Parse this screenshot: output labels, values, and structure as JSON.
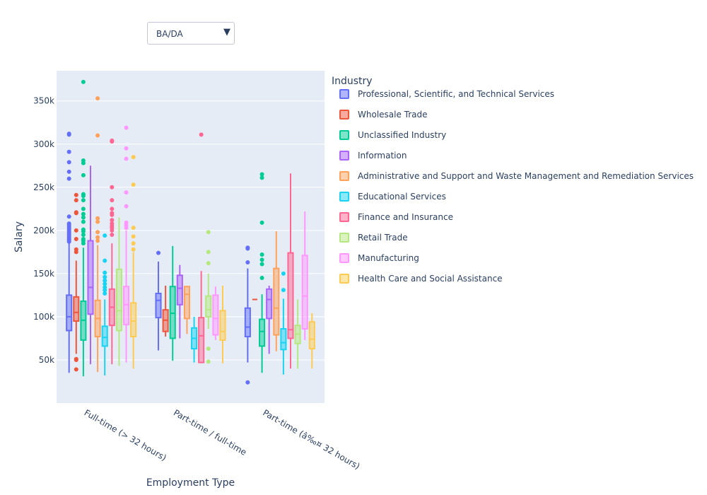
{
  "dropdown": {
    "selected": "BA/DA"
  },
  "chart_data": {
    "type": "box",
    "title": "",
    "xlabel": "Employment Type",
    "ylabel": "Salary",
    "ylim": [
      0,
      385000
    ],
    "yticks": [
      50000,
      100000,
      150000,
      200000,
      250000,
      300000,
      350000
    ],
    "ytick_labels": [
      "50k",
      "100k",
      "150k",
      "200k",
      "250k",
      "300k",
      "350k"
    ],
    "grid": true,
    "legend_title": "Industry",
    "legend_position": "right",
    "categories": [
      "Full-time (> 32 hours)",
      "Part-time / full-time",
      "Part-time (â‰¤ 32 hours)"
    ],
    "series": [
      {
        "name": "Professional, Scientific, and Technical Services",
        "color": "#636efa",
        "boxes": [
          {
            "min": 35000,
            "q1": 84000,
            "median": 100000,
            "q3": 125000,
            "max": 186000,
            "outliers": [
              187000,
              189000,
              190000,
              192000,
              194000,
              196000,
              198000,
              200000,
              202000,
              204000,
              206000,
              208000,
              216000,
              260000,
              268000,
              279000,
              291000,
              311000,
              312000
            ]
          },
          {
            "min": 61000,
            "q1": 99000,
            "median": 119000,
            "q3": 127000,
            "max": 164000,
            "outliers": [
              174000
            ]
          },
          {
            "min": 47000,
            "q1": 77000,
            "median": 88000,
            "q3": 110000,
            "max": 156000,
            "outliers": [
              24000,
              163000,
              179000,
              180000
            ]
          }
        ]
      },
      {
        "name": "Wholesale Trade",
        "color": "#ef553b",
        "boxes": [
          {
            "min": 57000,
            "q1": 95000,
            "median": 105000,
            "q3": 123000,
            "max": 165000,
            "outliers": [
              39000,
              50000,
              51000,
              175000,
              178000,
              190000,
              200000,
              220000,
              221000,
              235000,
              241000
            ]
          },
          {
            "min": 77000,
            "q1": 83000,
            "median": 96000,
            "q3": 108000,
            "max": 136000,
            "outliers": []
          },
          {
            "min": 120000,
            "q1": 120000,
            "median": 120000,
            "q3": 120000,
            "max": 120000,
            "outliers": []
          }
        ]
      },
      {
        "name": "Unclassified Industry",
        "color": "#00cc96",
        "boxes": [
          {
            "min": 31000,
            "q1": 73000,
            "median": 96000,
            "q3": 118000,
            "max": 180000,
            "outliers": [
              185000,
              188000,
              190000,
              195000,
              199000,
              201000,
              210000,
              215000,
              219000,
              225000,
              235000,
              240000,
              242000,
              264000,
              278000,
              281000,
              372000
            ]
          },
          {
            "min": 49000,
            "q1": 75000,
            "median": 104000,
            "q3": 135000,
            "max": 182000,
            "outliers": []
          },
          {
            "min": 35000,
            "q1": 66000,
            "median": 83000,
            "q3": 97000,
            "max": 126000,
            "outliers": [
              145000,
              161000,
              166000,
              172000,
              209000,
              261000,
              265000
            ]
          }
        ]
      },
      {
        "name": "Information",
        "color": "#ab63fa",
        "boxes": [
          {
            "min": 45000,
            "q1": 103000,
            "median": 134000,
            "q3": 188000,
            "max": 275000,
            "outliers": []
          },
          {
            "min": 75000,
            "q1": 114000,
            "median": 133000,
            "q3": 148000,
            "max": 160000,
            "outliers": []
          },
          {
            "min": 57000,
            "q1": 98000,
            "median": 120000,
            "q3": 132000,
            "max": 136000,
            "outliers": []
          }
        ]
      },
      {
        "name": "Administrative and Support and Waste Management and Remediation Services",
        "color": "#ffa15a",
        "boxes": [
          {
            "min": 36000,
            "q1": 77000,
            "median": 98000,
            "q3": 119000,
            "max": 183000,
            "outliers": [
              188000,
              192000,
              198000,
              210000,
              214000,
              310000,
              353000
            ]
          },
          {
            "min": 80000,
            "q1": 98000,
            "median": 126000,
            "q3": 135000,
            "max": 135000,
            "outliers": []
          },
          {
            "min": 60000,
            "q1": 79000,
            "median": 110000,
            "q3": 156000,
            "max": 199000,
            "outliers": []
          }
        ]
      },
      {
        "name": "Educational Services",
        "color": "#19d3f3",
        "boxes": [
          {
            "min": 32000,
            "q1": 66000,
            "median": 76000,
            "q3": 89000,
            "max": 120000,
            "outliers": [
              127000,
              131000,
              134000,
              138000,
              142000,
              146000,
              151000,
              165000,
              194000
            ]
          },
          {
            "min": 47000,
            "q1": 63000,
            "median": 75000,
            "q3": 87000,
            "max": 100000,
            "outliers": []
          },
          {
            "min": 33000,
            "q1": 62000,
            "median": 70000,
            "q3": 86000,
            "max": 121000,
            "outliers": [
              131000,
              150000
            ]
          }
        ]
      },
      {
        "name": "Finance and Insurance",
        "color": "#ff6692",
        "boxes": [
          {
            "min": 45000,
            "q1": 90000,
            "median": 111000,
            "q3": 132000,
            "max": 185000,
            "outliers": [
              195000,
              200000,
              203000,
              205000,
              208000,
              212000,
              218000,
              220000,
              225000,
              235000,
              250000,
              303000,
              304000
            ]
          },
          {
            "min": 47000,
            "q1": 47000,
            "median": 78000,
            "q3": 99000,
            "max": 153000,
            "outliers": [
              311000
            ]
          },
          {
            "min": 40000,
            "q1": 75000,
            "median": 85000,
            "q3": 174000,
            "max": 266000,
            "outliers": []
          }
        ]
      },
      {
        "name": "Retail Trade",
        "color": "#b6e880",
        "boxes": [
          {
            "min": 43000,
            "q1": 84000,
            "median": 107000,
            "q3": 155000,
            "max": 215000,
            "outliers": []
          },
          {
            "min": 86000,
            "q1": 100000,
            "median": 108000,
            "q3": 124000,
            "max": 150000,
            "outliers": [
              48000,
              63000,
              162000,
              175000,
              198000
            ]
          },
          {
            "min": 40000,
            "q1": 69000,
            "median": 80000,
            "q3": 90000,
            "max": 120000,
            "outliers": []
          }
        ]
      },
      {
        "name": "Manufacturing",
        "color": "#ff97ff",
        "boxes": [
          {
            "min": 47000,
            "q1": 91000,
            "median": 114000,
            "q3": 135000,
            "max": 200000,
            "outliers": [
              203000,
              206000,
              209000,
              228000,
              244000,
              283000,
              295000,
              319000
            ]
          },
          {
            "min": 73000,
            "q1": 79000,
            "median": 98000,
            "q3": 125000,
            "max": 135000,
            "outliers": []
          },
          {
            "min": 73000,
            "q1": 86000,
            "median": 124000,
            "q3": 171000,
            "max": 222000,
            "outliers": []
          }
        ]
      },
      {
        "name": "Health Care and Social Assistance",
        "color": "#fecb52",
        "boxes": [
          {
            "min": 40000,
            "q1": 77000,
            "median": 95000,
            "q3": 116000,
            "max": 175000,
            "outliers": [
              178000,
              185000,
              193000,
              203000,
              253000,
              285000
            ]
          },
          {
            "min": 46000,
            "q1": 73000,
            "median": 83000,
            "q3": 107000,
            "max": 136000,
            "outliers": []
          },
          {
            "min": 40000,
            "q1": 63000,
            "median": 74000,
            "q3": 94000,
            "max": 104000,
            "outliers": []
          }
        ]
      }
    ]
  }
}
